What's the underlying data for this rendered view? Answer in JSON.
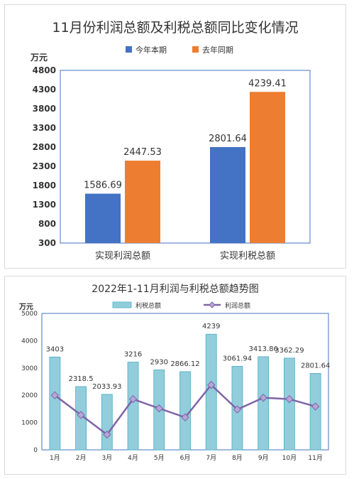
{
  "chart_data": [
    {
      "type": "bar",
      "title": "11月份利润总额及利税总额同比变化情况",
      "ylabel": "万元",
      "categories": [
        "实现利润总额",
        "实现利税总额"
      ],
      "series": [
        {
          "name": "今年本期",
          "values": [
            1586.69,
            2801.64
          ],
          "color": "#4472c4"
        },
        {
          "name": "去年同期",
          "values": [
            2447.53,
            4239.41
          ],
          "color": "#ed7d31"
        }
      ],
      "ylim": [
        300,
        4800
      ],
      "yticks": [
        300,
        800,
        1300,
        1800,
        2300,
        2800,
        3300,
        3800,
        4300,
        4800
      ],
      "legend_position": "top",
      "grid": false
    },
    {
      "type": "bar+line",
      "title": "2022年1-11月利润与利税总额趋势图",
      "ylabel": "万元",
      "categories": [
        "1月",
        "2月",
        "3月",
        "4月",
        "5月",
        "6月",
        "7月",
        "8月",
        "9月",
        "10月",
        "11月"
      ],
      "series": [
        {
          "name": "利税总额",
          "type": "bar",
          "values": [
            3403,
            2318.5,
            2033.93,
            3216,
            2930,
            2866.12,
            4239,
            3061.94,
            3413.86,
            3362.29,
            2801.64
          ],
          "labels": [
            "3403",
            "2318.5",
            "2033.93",
            "3216",
            "2930",
            "2866.12",
            "4239",
            "3061.94",
            "3413.86",
            "3362.29",
            "2801.64"
          ],
          "color": "#92cddc"
        },
        {
          "name": "利润总额",
          "type": "line",
          "values": [
            2000,
            1280,
            560,
            1860,
            1520,
            1190,
            2380,
            1480,
            1910,
            1860,
            1590
          ],
          "color": "#7f64a8"
        }
      ],
      "ylim": [
        0,
        5000
      ],
      "yticks": [
        0,
        1000,
        2000,
        3000,
        4000,
        5000
      ],
      "legend_position": "top",
      "grid": false
    }
  ]
}
